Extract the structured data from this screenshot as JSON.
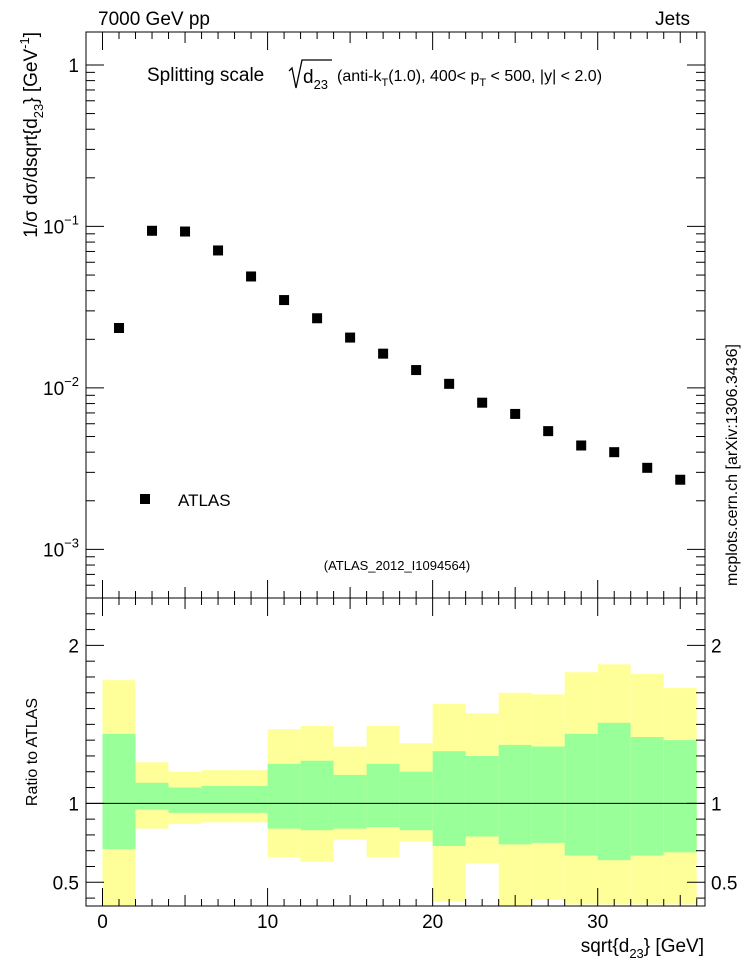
{
  "header": {
    "left": "7000 GeV pp",
    "right": "Jets",
    "side_label": "mcplots.cern.ch [arXiv:1306.3436]"
  },
  "chart_data": [
    {
      "type": "scatter",
      "title_main": "Splitting scale",
      "title_sqrt": "d",
      "title_sqrt_sub": "23",
      "title_rest_parts": [
        "(anti-k",
        "T",
        "(1.0), 400< p",
        "T",
        " < 500, |y| < 2.0)"
      ],
      "ylabel_parts": [
        "1/σ dσ/dsqrt{d",
        "23",
        "} [GeV",
        "-1",
        "]"
      ],
      "yscale": "log",
      "ylim": [
        0.0005,
        1.6
      ],
      "xlim": [
        -1,
        36.5
      ],
      "yticks": [
        {
          "v": 1,
          "base": "1",
          "exp": ""
        },
        {
          "v": 0.1,
          "base": "10",
          "exp": "−1"
        },
        {
          "v": 0.01,
          "base": "10",
          "exp": "−2"
        },
        {
          "v": 0.001,
          "base": "10",
          "exp": "−3"
        }
      ],
      "legend": {
        "label": "ATLAS",
        "position": "bottom-left"
      },
      "watermark": "(ATLAS_2012_I1094564)",
      "series": [
        {
          "name": "ATLAS",
          "marker": "square",
          "color": "#000000",
          "x": [
            1,
            3,
            5,
            7,
            9,
            11,
            13,
            15,
            17,
            19,
            21,
            23,
            25,
            27,
            29,
            31,
            33,
            35
          ],
          "y": [
            0.0235,
            0.094,
            0.093,
            0.071,
            0.049,
            0.035,
            0.027,
            0.0205,
            0.0163,
            0.0129,
            0.0106,
            0.0081,
            0.0069,
            0.0054,
            0.0044,
            0.004,
            0.0032,
            0.0027
          ]
        }
      ]
    },
    {
      "type": "area",
      "ylabel": "Ratio to ATLAS",
      "xlabel_parts": [
        "sqrt{d",
        "23",
        "} [GeV]"
      ],
      "ylim": [
        0.35,
        2.3
      ],
      "xlim": [
        -1,
        36.5
      ],
      "yticks": [
        0.5,
        1,
        2
      ],
      "ytick_labels": [
        "0.5",
        "1",
        "2"
      ],
      "xticks": [
        0,
        10,
        20,
        30
      ],
      "xtick_labels": [
        "0",
        "10",
        "20",
        "30"
      ],
      "reference_line": 1,
      "band_colors": {
        "inner": "#99ff99",
        "outer": "#ffff99"
      },
      "bins": {
        "edges": [
          0,
          2,
          4,
          6,
          8,
          10,
          12,
          14,
          16,
          18,
          20,
          22,
          24,
          26,
          28,
          30,
          32,
          34,
          36
        ],
        "inner_lo": [
          0.71,
          0.96,
          0.94,
          0.94,
          0.94,
          0.84,
          0.83,
          0.84,
          0.85,
          0.83,
          0.73,
          0.79,
          0.74,
          0.75,
          0.67,
          0.64,
          0.67,
          0.69
        ],
        "inner_hi": [
          1.44,
          1.13,
          1.1,
          1.11,
          1.11,
          1.25,
          1.27,
          1.18,
          1.25,
          1.2,
          1.33,
          1.3,
          1.37,
          1.36,
          1.44,
          1.51,
          1.42,
          1.4
        ],
        "outer_lo": [
          0.35,
          0.84,
          0.87,
          0.88,
          0.88,
          0.66,
          0.63,
          0.77,
          0.66,
          0.76,
          0.38,
          0.62,
          0.35,
          0.39,
          0.36,
          0.36,
          0.36,
          0.36
        ],
        "outer_hi": [
          1.78,
          1.26,
          1.2,
          1.21,
          1.21,
          1.47,
          1.49,
          1.36,
          1.49,
          1.38,
          1.63,
          1.57,
          1.7,
          1.69,
          1.83,
          1.88,
          1.82,
          1.73
        ]
      }
    }
  ]
}
